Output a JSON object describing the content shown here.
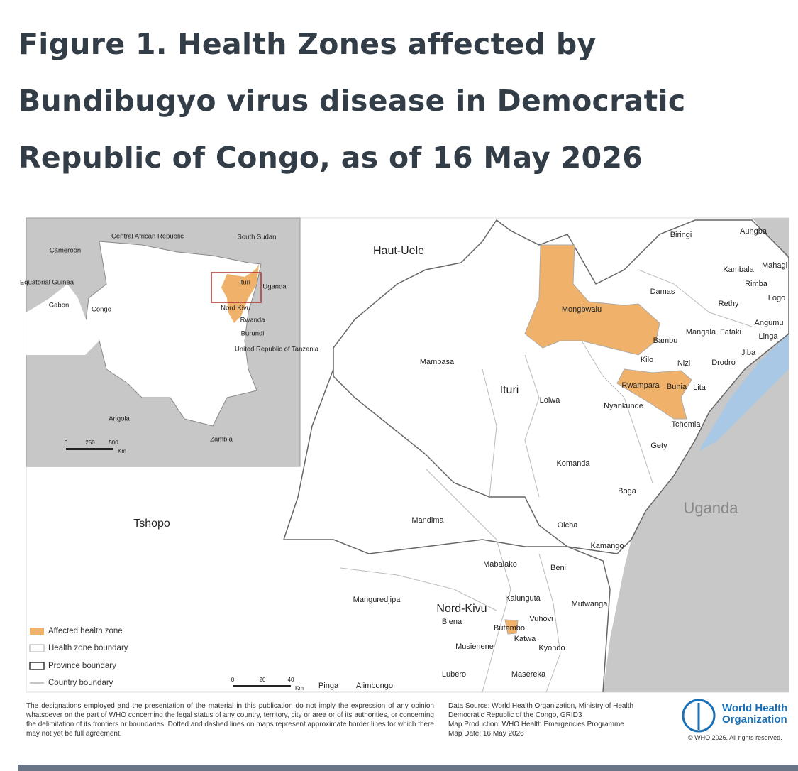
{
  "header": {
    "title_lines": [
      "Figure 1. Health Zones affected by",
      "Bundibugyo virus disease in Democratic",
      "Republic of Congo, as of 16 May 2026"
    ]
  },
  "inset_map": {
    "labels": [
      "Central African Republic",
      "South Sudan",
      "Cameroon",
      "Equatorial Guinea",
      "Gabon",
      "Congo",
      "Ituri",
      "Uganda",
      "Nord Kivu",
      "Rwanda",
      "Burundi",
      "United Republic of Tanzania",
      "Angola",
      "Zambia"
    ],
    "scale": {
      "ticks": [
        0,
        250,
        500
      ],
      "unit": "Km"
    }
  },
  "main_map": {
    "labels": [
      "Haut-Uele",
      "Biringi",
      "Aungba",
      "Mahagi",
      "Kambala",
      "Rimba",
      "Logo",
      "Damas",
      "Rethy",
      "Mongbwalu",
      "Angumu",
      "Mangala",
      "Fataki",
      "Linga",
      "Bambu",
      "Jiba",
      "Kilo",
      "Nizi",
      "Drodro",
      "Mambasa",
      "Rwampara",
      "Bunia",
      "Lita",
      "Ituri",
      "Lolwa",
      "Nyankunde",
      "Tchomia",
      "Gety",
      "Komanda",
      "Boga",
      "Uganda",
      "Tshopo",
      "Mandima",
      "Oicha",
      "Kamango",
      "Mabalako",
      "Beni",
      "Manguredjipa",
      "Kalunguta",
      "Mutwanga",
      "Nord-Kivu",
      "Vuhovi",
      "Biena",
      "Butembo",
      "Katwa",
      "Musienene",
      "Kyondo",
      "Lubero",
      "Masereka",
      "Pinga",
      "Alimbongo"
    ],
    "scale": {
      "ticks": [
        0,
        20,
        40
      ],
      "unit": "Km"
    }
  },
  "legend": {
    "items": [
      "Affected health zone",
      "Health zone boundary",
      "Province boundary",
      "Country boundary"
    ]
  },
  "footer": {
    "disclaimer": "The designations employed and the presentation of the material in this publication do not imply the expression of any opinion whatsoever on the part of WHO concerning the legal status of any country, territory, city or area or of its authorities, or concerning the delimitation of its frontiers or boundaries. Dotted and dashed lines on maps represent approximate border lines for which there may not yet be full agreement.",
    "source_lines": [
      "Data Source: World Health Organization, Ministry of Health",
      "Democratic Republic of the Congo, GRID3",
      "Map Production: WHO Health Emergencies Programme",
      "Map Date: 16 May 2026"
    ],
    "logo_lines": [
      "World Health",
      "Organization"
    ],
    "copyright": "© WHO 2026, All rights reserved."
  }
}
